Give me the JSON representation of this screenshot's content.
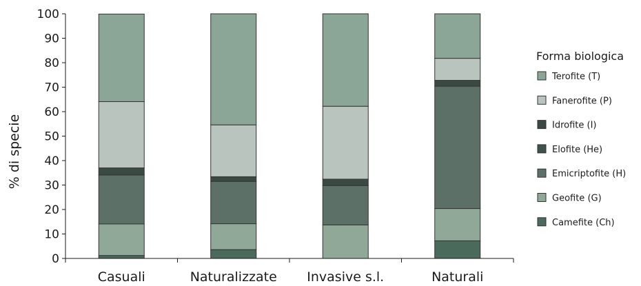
{
  "chart_data": {
    "type": "bar",
    "stacked": true,
    "ylabel": "% di specie",
    "xlabel": "",
    "ylim": [
      0,
      100
    ],
    "yticks": [
      0,
      10,
      20,
      30,
      40,
      50,
      60,
      70,
      80,
      90,
      100
    ],
    "categories": [
      "Casuali",
      "Naturalizzate",
      "Invasive s.l.",
      "Naturali"
    ],
    "legend_title": "Forma biologica",
    "legend_position": "right",
    "series": [
      {
        "name": "Camefite (Ch)",
        "color": "#4a6b5c",
        "values": [
          1.2,
          3.6,
          0,
          7.2
        ]
      },
      {
        "name": "Geofite (G)",
        "color": "#8fa898",
        "values": [
          12.9,
          10.6,
          13.7,
          13.2
        ]
      },
      {
        "name": "Emicriptofite (H)",
        "color": "#5c7068",
        "values": [
          20.0,
          17.3,
          16.1,
          50.0
        ]
      },
      {
        "name": "Elofite (He)",
        "color": "#3d5248",
        "values": [
          0,
          0,
          0,
          0
        ]
      },
      {
        "name": "Idrofite (I)",
        "color": "#3a4a43",
        "values": [
          2.9,
          1.9,
          2.6,
          2.4
        ]
      },
      {
        "name": "Fanerofite (P)",
        "color": "#b8c4bd",
        "values": [
          27.1,
          21.2,
          29.8,
          9.0
        ]
      },
      {
        "name": "Terofite (T)",
        "color": "#8ba596",
        "values": [
          35.8,
          45.4,
          37.8,
          18.2
        ]
      }
    ],
    "legend_order": [
      "Terofite (T)",
      "Fanerofite (P)",
      "Idrofite (I)",
      "Elofite (He)",
      "Emicriptofite (H)",
      "Geofite (G)",
      "Camefite (Ch)"
    ]
  }
}
